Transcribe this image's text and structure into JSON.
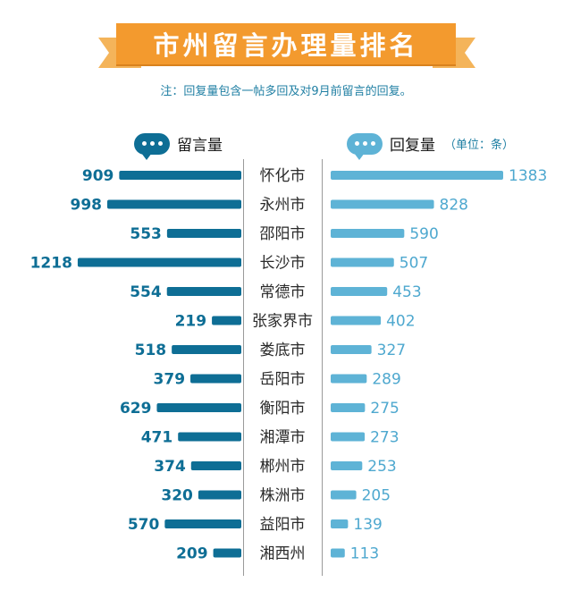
{
  "title": "市州留言办理量排名",
  "note": "注：回复量包含一帖多回及对9月前留言的回复。",
  "legend": {
    "left_label": "留言量",
    "right_label": "回复量",
    "unit": "（单位：条）"
  },
  "colors": {
    "banner": "#f39a2e",
    "banner_tail": "#f4b45a",
    "left_bar": "#0e6e95",
    "right_bar": "#5eb3d6",
    "note_text": "#1f7fa3"
  },
  "icons": {
    "left": "chat-bubble-icon",
    "right": "chat-bubble-icon"
  },
  "chart_data": {
    "type": "bar",
    "categories": [
      "怀化市",
      "永州市",
      "邵阳市",
      "长沙市",
      "常德市",
      "张家界市",
      "娄底市",
      "岳阳市",
      "衡阳市",
      "湘潭市",
      "郴州市",
      "株洲市",
      "益阳市",
      "湘西州"
    ],
    "series": [
      {
        "name": "留言量",
        "values": [
          909,
          998,
          553,
          1218,
          554,
          219,
          518,
          379,
          629,
          471,
          374,
          320,
          570,
          209
        ]
      },
      {
        "name": "回复量",
        "values": [
          1383,
          828,
          590,
          507,
          453,
          402,
          327,
          289,
          275,
          273,
          253,
          205,
          139,
          113
        ]
      }
    ],
    "value_labels_left": [
      "909",
      "998",
      "553",
      "1218",
      "554",
      "219",
      "518",
      "379",
      "629",
      "471",
      "374",
      "320",
      "570",
      "209"
    ],
    "value_labels_right": [
      "1383",
      "828",
      "590",
      "507",
      "453",
      "402",
      "327",
      "289",
      "275",
      "273",
      "253",
      "205",
      "139",
      "113"
    ],
    "xlim": [
      0,
      1383
    ],
    "grid": false,
    "legend_position": "top"
  }
}
